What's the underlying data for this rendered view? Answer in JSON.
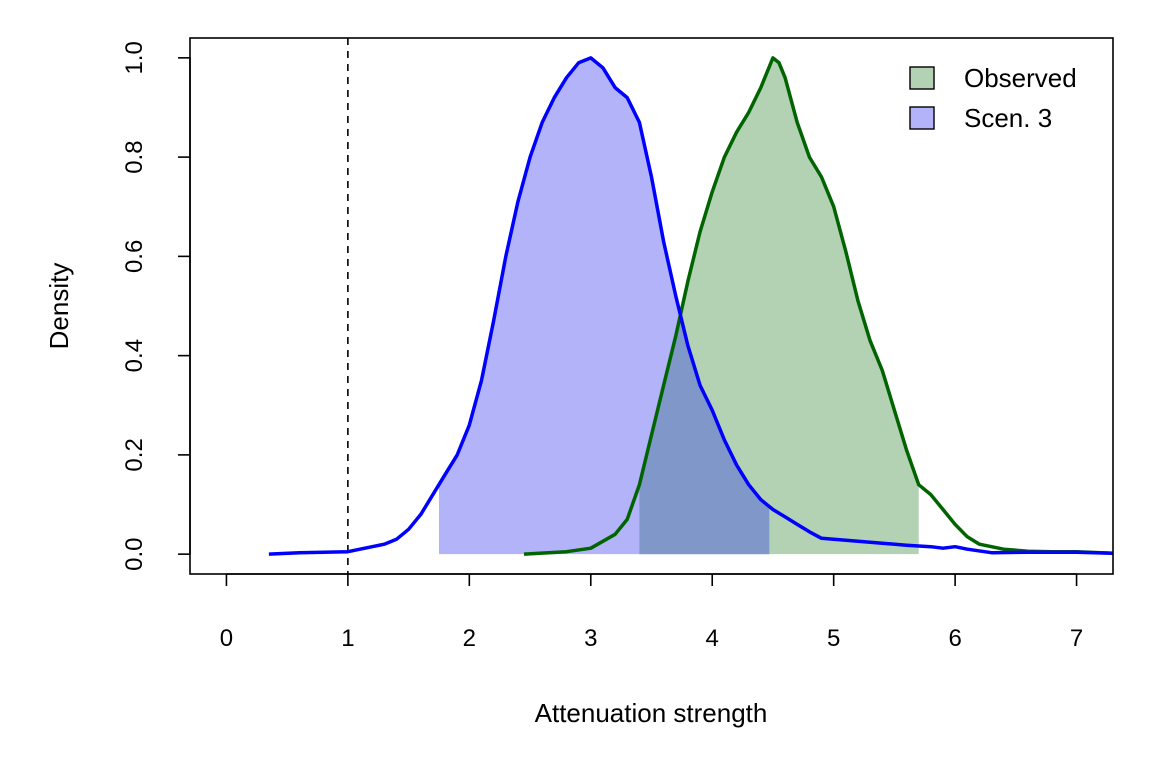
{
  "chart_data": {
    "type": "area",
    "xlabel": "Attenuation strength",
    "ylabel": "Density",
    "xlim": [
      -0.3,
      7.3
    ],
    "ylim": [
      -0.04,
      1.04
    ],
    "xticks": [
      "0",
      "1",
      "2",
      "3",
      "4",
      "5",
      "6",
      "7"
    ],
    "yticks": [
      "0.0",
      "0.2",
      "0.4",
      "0.6",
      "0.8",
      "1.0"
    ],
    "reference_line": {
      "x": 1,
      "style": "dashed"
    },
    "legend": {
      "placement": "top-right",
      "entries": [
        "Observed",
        "Scen. 3"
      ]
    },
    "series": [
      {
        "name": "Observed",
        "line_color": "#006400",
        "fill_color": "#b3d1b3",
        "shade_interval": [
          3.4,
          5.7
        ],
        "points": [
          [
            2.45,
            0.0
          ],
          [
            2.8,
            0.005
          ],
          [
            3.0,
            0.012
          ],
          [
            3.2,
            0.04
          ],
          [
            3.3,
            0.07
          ],
          [
            3.4,
            0.14
          ],
          [
            3.5,
            0.24
          ],
          [
            3.6,
            0.34
          ],
          [
            3.7,
            0.44
          ],
          [
            3.8,
            0.55
          ],
          [
            3.9,
            0.65
          ],
          [
            4.0,
            0.73
          ],
          [
            4.1,
            0.8
          ],
          [
            4.2,
            0.85
          ],
          [
            4.3,
            0.89
          ],
          [
            4.4,
            0.94
          ],
          [
            4.5,
            1.0
          ],
          [
            4.55,
            0.99
          ],
          [
            4.6,
            0.96
          ],
          [
            4.7,
            0.87
          ],
          [
            4.8,
            0.8
          ],
          [
            4.9,
            0.76
          ],
          [
            5.0,
            0.7
          ],
          [
            5.1,
            0.61
          ],
          [
            5.2,
            0.51
          ],
          [
            5.3,
            0.43
          ],
          [
            5.4,
            0.37
          ],
          [
            5.5,
            0.29
          ],
          [
            5.6,
            0.21
          ],
          [
            5.7,
            0.14
          ],
          [
            5.8,
            0.12
          ],
          [
            5.9,
            0.09
          ],
          [
            6.0,
            0.06
          ],
          [
            6.1,
            0.035
          ],
          [
            6.2,
            0.02
          ],
          [
            6.4,
            0.01
          ],
          [
            6.6,
            0.006
          ],
          [
            6.8,
            0.005
          ],
          [
            7.0,
            0.005
          ],
          [
            7.2,
            0.003
          ],
          [
            7.3,
            0.002
          ]
        ]
      },
      {
        "name": "Scen. 3",
        "line_color": "#0000ff",
        "fill_color": "#b3b3fa",
        "shade_interval": [
          1.75,
          4.47
        ],
        "points": [
          [
            0.35,
            0.0
          ],
          [
            0.6,
            0.003
          ],
          [
            0.8,
            0.004
          ],
          [
            1.0,
            0.005
          ],
          [
            1.1,
            0.01
          ],
          [
            1.2,
            0.015
          ],
          [
            1.3,
            0.02
          ],
          [
            1.4,
            0.03
          ],
          [
            1.5,
            0.05
          ],
          [
            1.6,
            0.08
          ],
          [
            1.7,
            0.12
          ],
          [
            1.8,
            0.16
          ],
          [
            1.9,
            0.2
          ],
          [
            2.0,
            0.26
          ],
          [
            2.1,
            0.35
          ],
          [
            2.2,
            0.47
          ],
          [
            2.3,
            0.6
          ],
          [
            2.4,
            0.71
          ],
          [
            2.5,
            0.8
          ],
          [
            2.6,
            0.87
          ],
          [
            2.7,
            0.92
          ],
          [
            2.8,
            0.96
          ],
          [
            2.9,
            0.99
          ],
          [
            3.0,
            1.0
          ],
          [
            3.1,
            0.98
          ],
          [
            3.2,
            0.94
          ],
          [
            3.3,
            0.92
          ],
          [
            3.4,
            0.87
          ],
          [
            3.5,
            0.76
          ],
          [
            3.6,
            0.63
          ],
          [
            3.7,
            0.52
          ],
          [
            3.8,
            0.42
          ],
          [
            3.9,
            0.34
          ],
          [
            4.0,
            0.29
          ],
          [
            4.1,
            0.23
          ],
          [
            4.2,
            0.18
          ],
          [
            4.3,
            0.14
          ],
          [
            4.4,
            0.11
          ],
          [
            4.5,
            0.09
          ],
          [
            4.6,
            0.075
          ],
          [
            4.7,
            0.06
          ],
          [
            4.8,
            0.045
          ],
          [
            4.9,
            0.032
          ],
          [
            5.0,
            0.03
          ],
          [
            5.2,
            0.026
          ],
          [
            5.4,
            0.022
          ],
          [
            5.6,
            0.018
          ],
          [
            5.8,
            0.015
          ],
          [
            5.9,
            0.012
          ],
          [
            6.0,
            0.015
          ],
          [
            6.1,
            0.01
          ],
          [
            6.3,
            0.003
          ],
          [
            6.6,
            0.004
          ],
          [
            7.0,
            0.004
          ],
          [
            7.3,
            0.002
          ]
        ]
      }
    ]
  }
}
